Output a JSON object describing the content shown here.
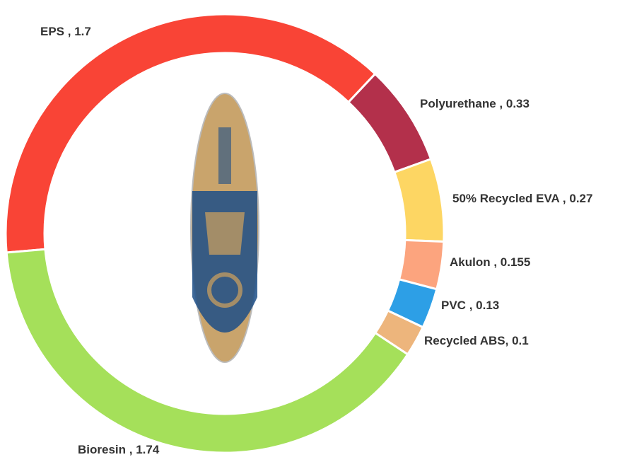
{
  "chart_data": {
    "type": "donut",
    "categories": [
      "EPS",
      "Polyurethane",
      "50% Recycled EVA",
      "Akulon",
      "PVC",
      "Recycled ABS",
      "Bioresin"
    ],
    "values": [
      1.7,
      0.33,
      0.27,
      0.155,
      0.13,
      0.1,
      1.74
    ],
    "value_labels": [
      " , 1.7",
      " , 0.33",
      " , 0.27",
      " , 0.155",
      " , 0.13",
      ", 0.1",
      " , 1.74"
    ],
    "colors": [
      "#f94436",
      "#b3304b",
      "#fdd663",
      "#fca47e",
      "#2d9fe6",
      "#edb57c",
      "#a5e05a"
    ]
  }
}
